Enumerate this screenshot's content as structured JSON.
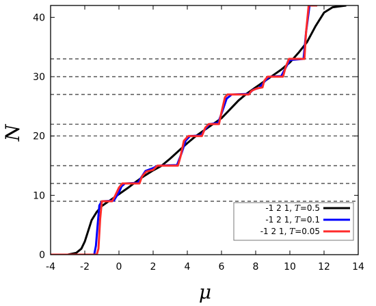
{
  "chart_data": {
    "type": "line",
    "title": "",
    "xlabel": "μ",
    "ylabel": "N",
    "xlim": [
      -4,
      14
    ],
    "ylim": [
      0,
      42
    ],
    "xticks": [
      "-4",
      "-2",
      "0",
      "2",
      "4",
      "6",
      "8",
      "10",
      "12",
      "14"
    ],
    "yticks": [
      "0",
      "10",
      "20",
      "30",
      "40"
    ],
    "grid": false,
    "legend_position": "bottom-right",
    "reference_lines": [
      9,
      12,
      15,
      20,
      22,
      27,
      30,
      33
    ],
    "series": [
      {
        "name": "-1 2 1, T=0.5",
        "color": "#000000",
        "points": [
          [
            -4,
            0
          ],
          [
            -3,
            0
          ],
          [
            -2.5,
            0.3
          ],
          [
            -2.2,
            1
          ],
          [
            -2,
            2.2
          ],
          [
            -1.8,
            4
          ],
          [
            -1.6,
            5.8
          ],
          [
            -1.3,
            7.2
          ],
          [
            -1,
            8.2
          ],
          [
            -0.5,
            9.2
          ],
          [
            0,
            10.2
          ],
          [
            0.5,
            11.2
          ],
          [
            1,
            12.3
          ],
          [
            1.5,
            13.3
          ],
          [
            2,
            14.2
          ],
          [
            2.5,
            15
          ],
          [
            3,
            16.2
          ],
          [
            3.5,
            17.5
          ],
          [
            4,
            18.8
          ],
          [
            4.5,
            20
          ],
          [
            5,
            21
          ],
          [
            5.5,
            22
          ],
          [
            6,
            23
          ],
          [
            6.5,
            24.5
          ],
          [
            7,
            26
          ],
          [
            7.5,
            27.2
          ],
          [
            8,
            28.2
          ],
          [
            8.5,
            29.2
          ],
          [
            9,
            30.2
          ],
          [
            9.5,
            31.2
          ],
          [
            10,
            32.4
          ],
          [
            10.5,
            34
          ],
          [
            11,
            35.8
          ],
          [
            11.5,
            38.5
          ],
          [
            12,
            40.8
          ],
          [
            12.5,
            41.7
          ],
          [
            13.3,
            42
          ]
        ]
      },
      {
        "name": "-1 2 1, T=0.1",
        "color": "#0000ff",
        "points": [
          [
            -4,
            0
          ],
          [
            -1.45,
            0
          ],
          [
            -1.35,
            1.5
          ],
          [
            -1.25,
            5
          ],
          [
            -1.15,
            8.3
          ],
          [
            -1,
            9
          ],
          [
            -0.3,
            9.1
          ],
          [
            0,
            10.5
          ],
          [
            0.15,
            11.5
          ],
          [
            0.35,
            12
          ],
          [
            1.1,
            12.1
          ],
          [
            1.3,
            13
          ],
          [
            1.55,
            14.1
          ],
          [
            2,
            14.6
          ],
          [
            2.25,
            15
          ],
          [
            3.4,
            15.1
          ],
          [
            3.65,
            17
          ],
          [
            3.9,
            19.2
          ],
          [
            4.15,
            20
          ],
          [
            4.8,
            20.1
          ],
          [
            5.05,
            21.2
          ],
          [
            5.3,
            22
          ],
          [
            5.8,
            22.2
          ],
          [
            6.05,
            24.2
          ],
          [
            6.3,
            26.3
          ],
          [
            6.6,
            27
          ],
          [
            7.6,
            27.1
          ],
          [
            7.85,
            27.8
          ],
          [
            8.2,
            28.1
          ],
          [
            8.55,
            29.3
          ],
          [
            8.8,
            30
          ],
          [
            9.5,
            30.1
          ],
          [
            9.75,
            31.5
          ],
          [
            10,
            32.8
          ],
          [
            10.8,
            33
          ],
          [
            10.95,
            37.5
          ],
          [
            11.15,
            42
          ],
          [
            11.6,
            42
          ]
        ]
      },
      {
        "name": "-1 2 1, T=0.05",
        "color": "#ff2a2a",
        "points": [
          [
            -4,
            0
          ],
          [
            -1.3,
            0
          ],
          [
            -1.2,
            1
          ],
          [
            -1.1,
            6
          ],
          [
            -1,
            9
          ],
          [
            -0.4,
            9
          ],
          [
            -0.25,
            9.8
          ],
          [
            0,
            11.3
          ],
          [
            0.2,
            12
          ],
          [
            1.2,
            12
          ],
          [
            1.35,
            13.2
          ],
          [
            1.6,
            14
          ],
          [
            2,
            14.3
          ],
          [
            2.25,
            15
          ],
          [
            3.45,
            15
          ],
          [
            3.6,
            16.5
          ],
          [
            3.8,
            19.2
          ],
          [
            4.05,
            20
          ],
          [
            4.85,
            20
          ],
          [
            5.05,
            21.4
          ],
          [
            5.25,
            22
          ],
          [
            5.85,
            22
          ],
          [
            6,
            24
          ],
          [
            6.2,
            26.5
          ],
          [
            6.35,
            27
          ],
          [
            7.6,
            27
          ],
          [
            7.75,
            27.6
          ],
          [
            8.05,
            28
          ],
          [
            8.4,
            28.2
          ],
          [
            8.5,
            29.3
          ],
          [
            8.7,
            30
          ],
          [
            9.6,
            30
          ],
          [
            9.75,
            31.6
          ],
          [
            9.95,
            33
          ],
          [
            10.85,
            33
          ],
          [
            10.95,
            37.5
          ],
          [
            11.1,
            42
          ],
          [
            11.6,
            42
          ]
        ]
      }
    ]
  }
}
